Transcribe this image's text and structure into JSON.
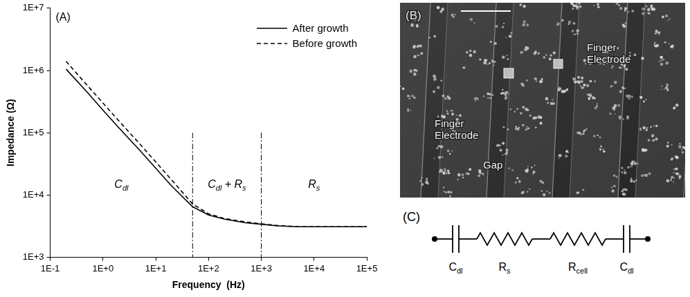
{
  "chart_data": {
    "type": "line",
    "panel_label": "(A)",
    "xlabel": "Frequency  (Hz)",
    "ylabel": "Impedance (Ω)",
    "log": true,
    "grid": false,
    "legend": "upper right",
    "x": [
      0.2,
      0.5,
      1,
      2,
      5,
      10,
      20,
      50,
      100,
      200,
      500,
      1000,
      2000,
      5000,
      10000,
      100000
    ],
    "series": [
      {
        "name": "After growth",
        "color": "#000000",
        "line_style": "solid",
        "values": [
          1050000,
          450000,
          230000,
          120000,
          52000,
          27000,
          14000,
          6500,
          4800,
          4100,
          3600,
          3400,
          3200,
          3100,
          3100,
          3100
        ]
      },
      {
        "name": "Before growth",
        "color": "#000000",
        "line_style": "dashed",
        "values": [
          1400000,
          580000,
          300000,
          155000,
          66000,
          34000,
          17500,
          7200,
          5000,
          4200,
          3700,
          3450,
          3250,
          3100,
          3100,
          3100
        ]
      }
    ],
    "xlim": [
      0.1,
      100000
    ],
    "xticks": [
      {
        "value": 0.1,
        "label": "1E-1"
      },
      {
        "value": 1,
        "label": "1E+0"
      },
      {
        "value": 10,
        "label": "1E+1"
      },
      {
        "value": 100,
        "label": "1E+2"
      },
      {
        "value": 1000,
        "label": "1E+3"
      },
      {
        "value": 10000,
        "label": "1E+4"
      },
      {
        "value": 100000,
        "label": "1E+5"
      }
    ],
    "ylim": [
      1000,
      10000000
    ],
    "yticks": [
      {
        "value": 1000,
        "label": "1E+3"
      },
      {
        "value": 10000,
        "label": "1E+4"
      },
      {
        "value": 100000,
        "label": "1E+5"
      },
      {
        "value": 1000000,
        "label": "1E+6"
      },
      {
        "value": 10000000,
        "label": "1E+7"
      }
    ],
    "vlines": [
      50,
      1000
    ],
    "region_labels": [
      [
        {
          "text": "C"
        },
        {
          "text": "dl",
          "sub": true
        }
      ],
      [
        {
          "text": "C"
        },
        {
          "text": "dl",
          "sub": true
        },
        {
          "text": " + "
        },
        {
          "text": "R"
        },
        {
          "text": "s",
          "sub": true
        }
      ],
      [
        {
          "text": "R"
        },
        {
          "text": "s",
          "sub": true
        }
      ]
    ]
  },
  "panel_b": {
    "panel_label": "(B)",
    "labels": [
      "Finger Electrode",
      "Finger Electrode",
      "Gap"
    ]
  },
  "panel_c": {
    "panel_label": "(C)",
    "components": [
      {
        "kind": "capacitor",
        "label": [
          {
            "text": "C"
          },
          {
            "text": "dl",
            "sub": true
          }
        ]
      },
      {
        "kind": "resistor",
        "label": [
          {
            "text": "R"
          },
          {
            "text": "s",
            "sub": true
          }
        ]
      },
      {
        "kind": "resistor",
        "label": [
          {
            "text": "R"
          },
          {
            "text": "cell",
            "sub": true
          }
        ]
      },
      {
        "kind": "capacitor",
        "label": [
          {
            "text": "C"
          },
          {
            "text": "dl",
            "sub": true
          }
        ]
      }
    ]
  }
}
